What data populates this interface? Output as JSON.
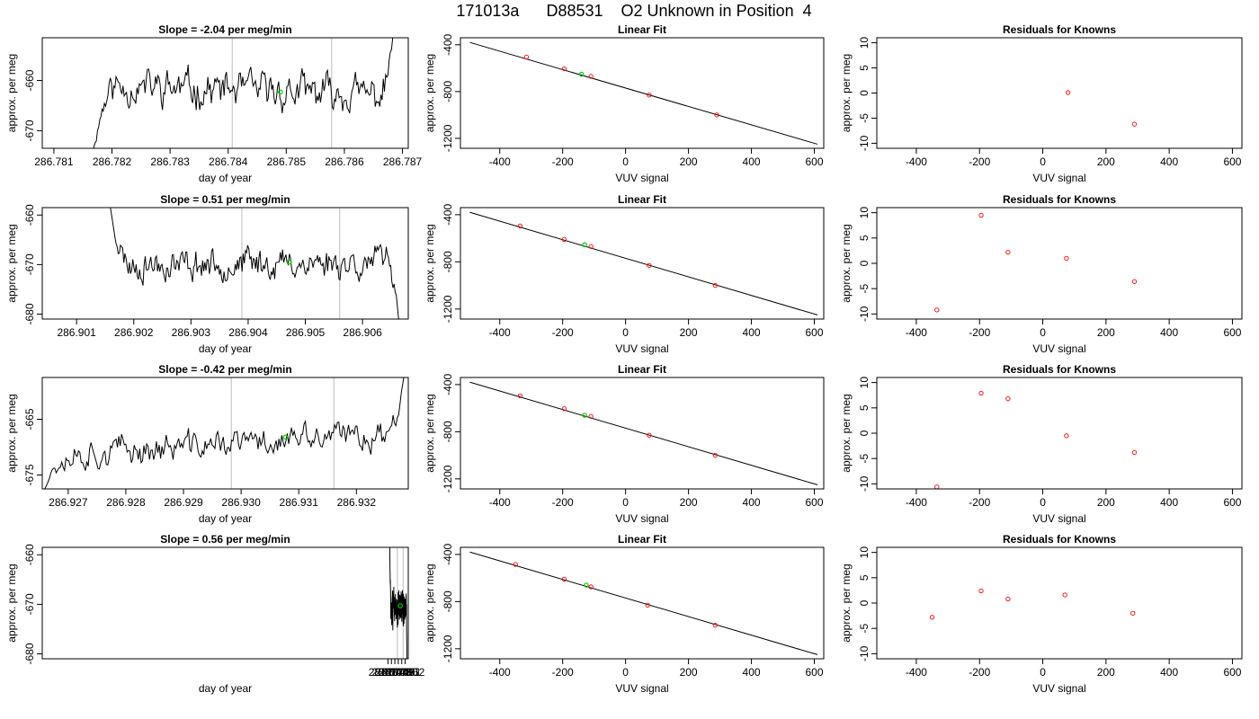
{
  "page_title": "171013a      D88531    O2 Unknown in Position  4",
  "chart_data": [
    {
      "type": "line",
      "row": 1,
      "col": 1,
      "title": "Slope =  -2.04  per meg/min",
      "xlabel": "day of year",
      "ylabel": "approx. per meg",
      "xlim": [
        286.7808,
        286.7871
      ],
      "ylim": [
        -673.5,
        -651.5
      ],
      "xticks": [
        286.781,
        286.782,
        286.783,
        286.784,
        286.785,
        286.786,
        286.787
      ],
      "xtick_labels": [
        "286.781",
        "286.782",
        "286.783",
        "286.784",
        "286.785",
        "286.786",
        "286.787"
      ],
      "yticks": [
        -670,
        -660
      ],
      "ytick_labels": [
        "-670",
        "-660"
      ],
      "vlines": [
        286.78407,
        286.78578
      ],
      "trace": {
        "x_start": 286.78165,
        "x_end": 286.78685,
        "start_value": -676,
        "base_start": -661,
        "base_end": -663,
        "noise": 3.0,
        "end_value": -650,
        "seed": 11
      },
      "marker": {
        "x": 286.7849,
        "y": -662.3
      }
    },
    {
      "type": "scatter",
      "row": 1,
      "col": 2,
      "title": "Linear Fit",
      "xlabel": "VUV signal",
      "ylabel": "approx. per meg",
      "xlim": [
        -525,
        630
      ],
      "ylim": [
        -1285,
        -340
      ],
      "xticks": [
        -400,
        -200,
        0,
        200,
        400,
        600
      ],
      "xtick_labels": [
        "-400",
        "-200",
        "0",
        "200",
        "400",
        "600"
      ],
      "yticks": [
        -1200,
        -800,
        -400
      ],
      "ytick_labels": [
        "-1200",
        "-800",
        "-400"
      ],
      "fit_line": {
        "x1": -495,
        "y1": -380,
        "x2": 610,
        "y2": -1250
      },
      "points": [
        {
          "x": -315,
          "y": -505
        },
        {
          "x": -195,
          "y": -605
        },
        {
          "x": -110,
          "y": -670
        },
        {
          "x": 75,
          "y": -830
        },
        {
          "x": 290,
          "y": -1000
        }
      ],
      "marker": {
        "x": -140,
        "y": -652
      }
    },
    {
      "type": "scatter",
      "row": 1,
      "col": 3,
      "title": "Residuals for Knowns",
      "xlabel": "VUV signal",
      "ylabel": "approx. per meg",
      "xlim": [
        -525,
        630
      ],
      "ylim": [
        -11,
        11
      ],
      "xticks": [
        -400,
        -200,
        0,
        200,
        400,
        600
      ],
      "xtick_labels": [
        "-400",
        "-200",
        "0",
        "200",
        "400",
        "600"
      ],
      "yticks": [
        -10,
        -5,
        0,
        5,
        10
      ],
      "ytick_labels": [
        "-10",
        "-5",
        "0",
        "5",
        "10"
      ],
      "points": [
        {
          "x": 80,
          "y": 0.1
        },
        {
          "x": 290,
          "y": -6.2
        }
      ]
    },
    {
      "type": "line",
      "row": 2,
      "col": 1,
      "title": "Slope =  0.51  per meg/min",
      "xlabel": "day of year",
      "ylabel": "approx. per meg",
      "xlim": [
        286.9004,
        286.9068
      ],
      "ylim": [
        -681,
        -658.5
      ],
      "xticks": [
        286.901,
        286.902,
        286.903,
        286.904,
        286.905,
        286.906
      ],
      "xtick_labels": [
        "286.901",
        "286.902",
        "286.903",
        "286.904",
        "286.905",
        "286.906"
      ],
      "yticks": [
        -680,
        -670,
        -660
      ],
      "ytick_labels": [
        "-680",
        "-670",
        "-660"
      ],
      "vlines": [
        286.90389,
        286.9056
      ],
      "trace": {
        "x_start": 286.90155,
        "x_end": 286.90667,
        "start_value": -656,
        "base_start": -670,
        "base_end": -669.5,
        "noise": 2.6,
        "end_value": -684,
        "seed": 23
      },
      "marker": {
        "x": 286.90472,
        "y": -669.5
      }
    },
    {
      "type": "scatter",
      "row": 2,
      "col": 2,
      "title": "Linear Fit",
      "xlabel": "VUV signal",
      "ylabel": "approx. per meg",
      "xlim": [
        -525,
        630
      ],
      "ylim": [
        -1285,
        -340
      ],
      "xticks": [
        -400,
        -200,
        0,
        200,
        400,
        600
      ],
      "xtick_labels": [
        "-400",
        "-200",
        "0",
        "200",
        "400",
        "600"
      ],
      "yticks": [
        -1200,
        -800,
        -400
      ],
      "ytick_labels": [
        "-1200",
        "-800",
        "-400"
      ],
      "fit_line": {
        "x1": -495,
        "y1": -380,
        "x2": 610,
        "y2": -1250
      },
      "points": [
        {
          "x": -335,
          "y": -495
        },
        {
          "x": -195,
          "y": -610
        },
        {
          "x": -110,
          "y": -670
        },
        {
          "x": 75,
          "y": -830
        },
        {
          "x": 285,
          "y": -1000
        }
      ],
      "marker": {
        "x": -130,
        "y": -655
      }
    },
    {
      "type": "scatter",
      "row": 2,
      "col": 3,
      "title": "Residuals for Knowns",
      "xlabel": "VUV signal",
      "ylabel": "approx. per meg",
      "xlim": [
        -525,
        630
      ],
      "ylim": [
        -11,
        11
      ],
      "xticks": [
        -400,
        -200,
        0,
        200,
        400,
        600
      ],
      "xtick_labels": [
        "-400",
        "-200",
        "0",
        "200",
        "400",
        "600"
      ],
      "yticks": [
        -10,
        -5,
        0,
        5,
        10
      ],
      "ytick_labels": [
        "-10",
        "-5",
        "0",
        "5",
        "10"
      ],
      "points": [
        {
          "x": -335,
          "y": -9.2
        },
        {
          "x": -195,
          "y": 9.5
        },
        {
          "x": -110,
          "y": 2.2
        },
        {
          "x": 75,
          "y": 1.0
        },
        {
          "x": 290,
          "y": -3.6
        }
      ]
    },
    {
      "type": "line",
      "row": 3,
      "col": 1,
      "title": "Slope =  -0.42  per meg/min",
      "xlabel": "day of year",
      "ylabel": "approx. per meg",
      "xlim": [
        286.92655,
        286.9329
      ],
      "ylim": [
        -677.5,
        -657.5
      ],
      "xticks": [
        286.927,
        286.928,
        286.929,
        286.93,
        286.931,
        286.932
      ],
      "xtick_labels": [
        "286.927",
        "286.928",
        "286.929",
        "286.930",
        "286.931",
        "286.932"
      ],
      "yticks": [
        -675,
        -665
      ],
      "ytick_labels": [
        "-675",
        "-665"
      ],
      "vlines": [
        286.92983,
        286.93161
      ],
      "trace": {
        "x_start": 286.92655,
        "x_end": 286.93283,
        "start_value": -678,
        "base_start": -671.5,
        "base_end": -667.5,
        "noise": 2.2,
        "end_value": -657,
        "seed": 37
      },
      "marker": {
        "x": 286.93077,
        "y": -668.2
      }
    },
    {
      "type": "scatter",
      "row": 3,
      "col": 2,
      "title": "Linear Fit",
      "xlabel": "VUV signal",
      "ylabel": "approx. per meg",
      "xlim": [
        -525,
        630
      ],
      "ylim": [
        -1285,
        -340
      ],
      "xticks": [
        -400,
        -200,
        0,
        200,
        400,
        600
      ],
      "xtick_labels": [
        "-400",
        "-200",
        "0",
        "200",
        "400",
        "600"
      ],
      "yticks": [
        -1200,
        -800,
        -400
      ],
      "ytick_labels": [
        "-1200",
        "-800",
        "-400"
      ],
      "fit_line": {
        "x1": -495,
        "y1": -380,
        "x2": 610,
        "y2": -1250
      },
      "points": [
        {
          "x": -335,
          "y": -495
        },
        {
          "x": -195,
          "y": -605
        },
        {
          "x": -110,
          "y": -670
        },
        {
          "x": 75,
          "y": -830
        },
        {
          "x": 285,
          "y": -1000
        }
      ],
      "marker": {
        "x": -130,
        "y": -660
      }
    },
    {
      "type": "scatter",
      "row": 3,
      "col": 3,
      "title": "Residuals for Knowns",
      "xlabel": "VUV signal",
      "ylabel": "approx. per meg",
      "xlim": [
        -525,
        630
      ],
      "ylim": [
        -11,
        11
      ],
      "xticks": [
        -400,
        -200,
        0,
        200,
        400,
        600
      ],
      "xtick_labels": [
        "-400",
        "-200",
        "0",
        "200",
        "400",
        "600"
      ],
      "yticks": [
        -10,
        -5,
        0,
        5,
        10
      ],
      "ytick_labels": [
        "-10",
        "-5",
        "0",
        "5",
        "10"
      ],
      "points": [
        {
          "x": -335,
          "y": -10.6
        },
        {
          "x": -195,
          "y": 7.9
        },
        {
          "x": -110,
          "y": 6.8
        },
        {
          "x": 75,
          "y": -0.5
        },
        {
          "x": 290,
          "y": -3.8
        }
      ]
    },
    {
      "type": "line",
      "row": 4,
      "col": 1,
      "title": "Slope =  0.56  per meg/min",
      "xlabel": "day of year",
      "ylabel": "approx. per meg",
      "xlim": [
        286.94655,
        287.0529
      ],
      "ylim": [
        -681,
        -658.5
      ],
      "xticks": [
        287.047,
        287.048,
        287.049,
        287.05,
        287.051,
        287.052
      ],
      "xtick_labels": [
        "287.047",
        "287.048",
        "287.049",
        "287.050",
        "287.051",
        "287.052"
      ],
      "yticks": [
        -680,
        -670,
        -660
      ],
      "ytick_labels": [
        "-680",
        "-670",
        "-660"
      ],
      "vlines": [
        287.04972,
        287.05143
      ],
      "trace": {
        "x_start": 287.04748,
        "x_end": 287.05253,
        "start_value": -656,
        "base_start": -671,
        "base_end": -670.5,
        "noise": 2.8,
        "end_value": -684,
        "seed": 51
      },
      "marker": {
        "x": 287.05058,
        "y": -670.3
      }
    },
    {
      "type": "scatter",
      "row": 4,
      "col": 2,
      "title": "Linear Fit",
      "xlabel": "VUV signal",
      "ylabel": "approx. per meg",
      "xlim": [
        -525,
        630
      ],
      "ylim": [
        -1285,
        -340
      ],
      "xticks": [
        -400,
        -200,
        0,
        200,
        400,
        600
      ],
      "xtick_labels": [
        "-400",
        "-200",
        "0",
        "200",
        "400",
        "600"
      ],
      "yticks": [
        -1200,
        -800,
        -400
      ],
      "ytick_labels": [
        "-1200",
        "-800",
        "-400"
      ],
      "fit_line": {
        "x1": -495,
        "y1": -380,
        "x2": 610,
        "y2": -1250
      },
      "points": [
        {
          "x": -350,
          "y": -485
        },
        {
          "x": -195,
          "y": -610
        },
        {
          "x": -110,
          "y": -675
        },
        {
          "x": 70,
          "y": -830
        },
        {
          "x": 285,
          "y": -1000
        }
      ],
      "marker": {
        "x": -125,
        "y": -660
      }
    },
    {
      "type": "scatter",
      "row": 4,
      "col": 3,
      "title": "Residuals for Knowns",
      "xlabel": "VUV signal",
      "ylabel": "approx. per meg",
      "xlim": [
        -525,
        630
      ],
      "ylim": [
        -11,
        11
      ],
      "xticks": [
        -400,
        -200,
        0,
        200,
        400,
        600
      ],
      "xtick_labels": [
        "-400",
        "-200",
        "0",
        "200",
        "400",
        "600"
      ],
      "yticks": [
        -10,
        -5,
        0,
        5,
        10
      ],
      "ytick_labels": [
        "-10",
        "-5",
        "0",
        "5",
        "10"
      ],
      "points": [
        {
          "x": -350,
          "y": -2.8
        },
        {
          "x": -195,
          "y": 2.4
        },
        {
          "x": -110,
          "y": 0.8
        },
        {
          "x": 70,
          "y": 1.6
        },
        {
          "x": 285,
          "y": -2.0
        }
      ]
    }
  ]
}
